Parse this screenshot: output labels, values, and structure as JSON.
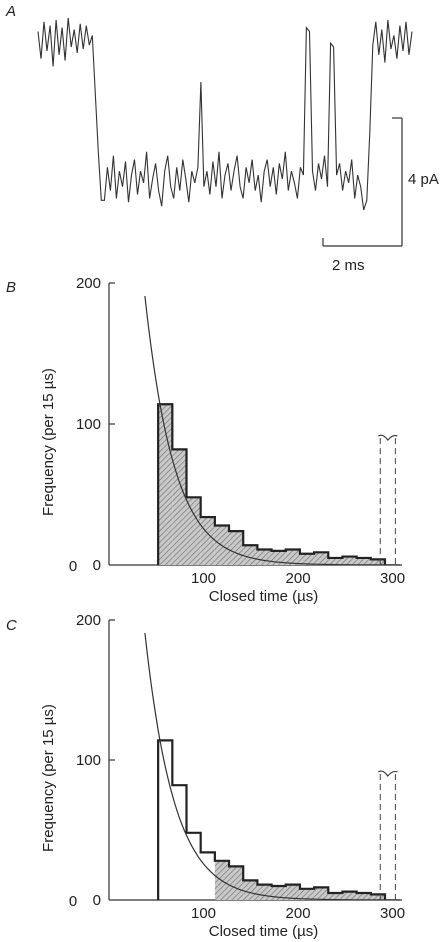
{
  "panel_labels": {
    "a": "A",
    "b": "B",
    "c": "C"
  },
  "scale_bars": {
    "current": "4 pA",
    "time": "2 ms"
  },
  "trace": {
    "y": [
      0.92,
      0.78,
      0.97,
      0.82,
      0.95,
      0.74,
      0.98,
      0.8,
      0.94,
      0.77,
      0.99,
      0.84,
      0.93,
      0.81,
      0.96,
      0.83,
      0.95,
      0.85,
      0.9,
      0.6,
      0.3,
      0.05,
      0.05,
      0.22,
      0.1,
      0.28,
      0.06,
      0.2,
      0.12,
      0.25,
      0.04,
      0.18,
      0.26,
      0.08,
      0.2,
      0.14,
      0.3,
      0.06,
      0.16,
      0.24,
      0.1,
      0.02,
      0.2,
      0.28,
      0.12,
      0.06,
      0.22,
      0.1,
      0.26,
      0.16,
      0.04,
      0.2,
      0.14,
      0.22,
      0.66,
      0.12,
      0.2,
      0.08,
      0.25,
      0.12,
      0.3,
      0.06,
      0.18,
      0.24,
      0.1,
      0.2,
      0.28,
      0.12,
      0.06,
      0.22,
      0.14,
      0.26,
      0.1,
      0.18,
      0.04,
      0.2,
      0.26,
      0.12,
      0.22,
      0.08,
      0.24,
      0.16,
      0.3,
      0.1,
      0.2,
      0.14,
      0.06,
      0.22,
      0.18,
      0.94,
      0.92,
      0.2,
      0.1,
      0.24,
      0.16,
      0.28,
      0.12,
      0.86,
      0.84,
      0.18,
      0.24,
      0.1,
      0.2,
      0.14,
      0.26,
      0.06,
      0.18,
      0.12,
      0.0,
      0.05,
      0.4,
      0.85,
      0.97,
      0.8,
      0.93,
      0.76,
      0.98,
      0.83,
      0.9,
      0.78,
      0.95,
      0.82,
      0.97,
      0.8,
      0.92
    ]
  },
  "chart_data": [
    {
      "type": "bar",
      "panel": "B",
      "xlabel": "Closed time (µs)",
      "ylabel": "Frequency (per 15 µs)",
      "xticks": [
        0,
        100,
        200,
        300
      ],
      "yticks": [
        0,
        100,
        200
      ],
      "xlim": [
        0,
        310
      ],
      "ylim": [
        0,
        200
      ],
      "bin_width": 15,
      "bins_x": [
        52,
        67,
        82,
        97,
        112,
        127,
        142,
        157,
        172,
        187,
        202,
        217,
        232,
        247,
        262,
        277
      ],
      "values": [
        114,
        82,
        48,
        34,
        28,
        24,
        14,
        11,
        10,
        11,
        8,
        9,
        5,
        6,
        5,
        4
      ],
      "shaded_from": 52,
      "fit": {
        "type": "exponential",
        "a": 650,
        "tau": 31
      },
      "axis_break_x": [
        287,
        303
      ]
    },
    {
      "type": "bar",
      "panel": "C",
      "xlabel": "Closed time (µs)",
      "ylabel": "Frequency (per 15 µs)",
      "xticks": [
        0,
        100,
        200,
        300
      ],
      "yticks": [
        0,
        100,
        200
      ],
      "xlim": [
        0,
        310
      ],
      "ylim": [
        0,
        200
      ],
      "bin_width": 15,
      "bins_x": [
        52,
        67,
        82,
        97,
        112,
        127,
        142,
        157,
        172,
        187,
        202,
        217,
        232,
        247,
        262,
        277
      ],
      "values": [
        114,
        82,
        48,
        34,
        28,
        24,
        14,
        11,
        10,
        11,
        8,
        9,
        5,
        6,
        5,
        4
      ],
      "shaded_from": 112,
      "fit": {
        "type": "exponential",
        "a": 650,
        "tau": 31
      },
      "axis_break_x": [
        287,
        303
      ]
    }
  ]
}
